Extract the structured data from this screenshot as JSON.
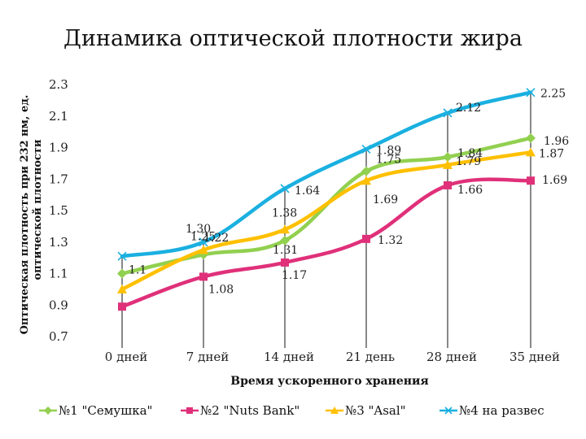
{
  "chart_data": {
    "type": "line",
    "title": "Динамика оптической плотности жира",
    "xlabel": "Время ускоренного хранения",
    "ylabel_lines": [
      "Оптическая плотность при 232 нм, ед.",
      "оптической плотности"
    ],
    "categories": [
      "0 дней",
      "7 дней",
      "14 дней",
      "21 день",
      "28 дней",
      "35 дней"
    ],
    "ylim": [
      0.7,
      2.3
    ],
    "yticks": [
      "0.7",
      "0.9",
      "1.1",
      "1.3",
      "1.5",
      "1.7",
      "1.9",
      "2.1",
      "2.3"
    ],
    "grid": false,
    "legend_position": "bottom",
    "series": [
      {
        "name": "№1 \"Семушка\"",
        "color": "#92d050",
        "marker": "diamond",
        "values": [
          1.1,
          1.22,
          1.31,
          1.75,
          1.84,
          1.96
        ],
        "labels": [
          "1.1",
          "",
          "1.31",
          "1.75",
          "1.84",
          "1.96"
        ]
      },
      {
        "name": "№2 \"Nuts Bank\"",
        "color": "#e0307a",
        "marker": "square",
        "values": [
          0.89,
          1.08,
          1.17,
          1.32,
          1.66,
          1.69
        ],
        "labels": [
          "",
          "1.08",
          "1.17",
          "1.32",
          "1.66",
          "1.69"
        ]
      },
      {
        "name": "№3 \"Asal\"",
        "color": "#ffc000",
        "marker": "triangle",
        "values": [
          1.0,
          1.25,
          1.38,
          1.69,
          1.79,
          1.87
        ],
        "labels": [
          "",
          "1.25",
          "1.38",
          "1.69",
          "1.79",
          "1.87"
        ]
      },
      {
        "name": "№4 на развес",
        "color": "#1ab0e0",
        "marker": "x",
        "values": [
          1.21,
          1.3,
          1.64,
          1.89,
          2.12,
          2.25
        ],
        "labels": [
          "",
          "1.30",
          "1.64",
          "1.89",
          "2.12",
          "2.25"
        ]
      }
    ],
    "extra_labels": [
      "1.22"
    ]
  }
}
